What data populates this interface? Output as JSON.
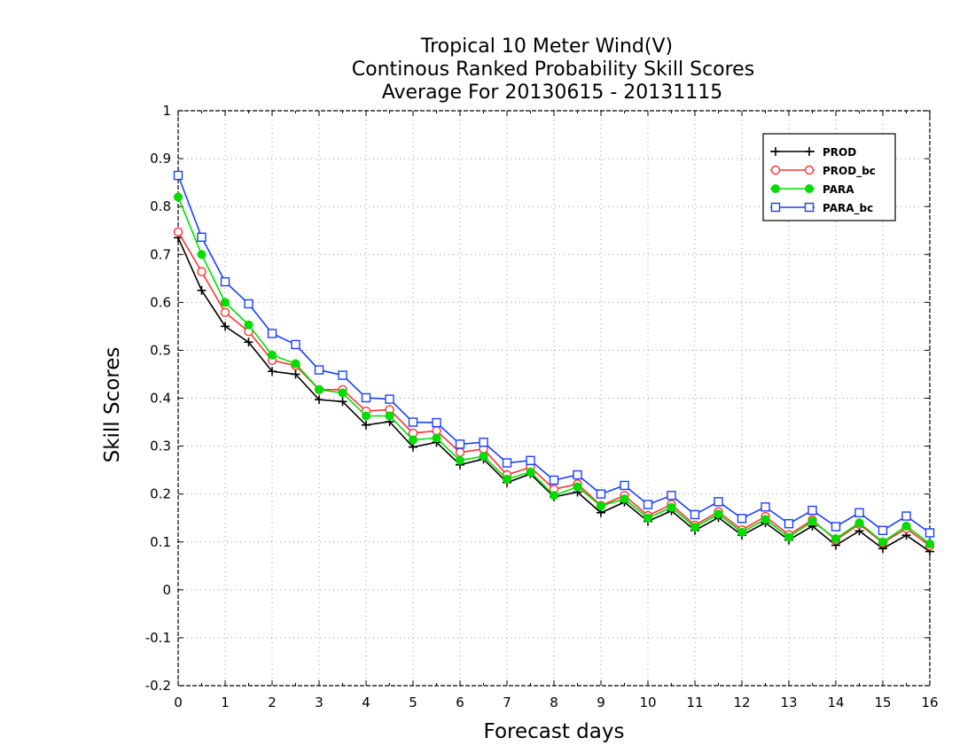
{
  "chart_data": {
    "type": "line",
    "title_lines": [
      "Tropical 10 Meter Wind(V)",
      "Continous Ranked Probability Skill Scores",
      "Average For 20130615 - 20131115"
    ],
    "xlabel": "Forecast days",
    "ylabel": "Skill Scores",
    "xlim": [
      0,
      16
    ],
    "ylim": [
      -0.2,
      1
    ],
    "x_ticks": [
      "0",
      "1",
      "2",
      "3",
      "4",
      "5",
      "6",
      "7",
      "8",
      "9",
      "10",
      "11",
      "12",
      "13",
      "14",
      "15",
      "16"
    ],
    "y_ticks": [
      "-0.2",
      "-0.1",
      "0",
      "0.1",
      "0.2",
      "0.3",
      "0.4",
      "0.5",
      "0.6",
      "0.7",
      "0.8",
      "0.9",
      "1"
    ],
    "grid": true,
    "legend_position": "top-right",
    "x": [
      0,
      0.5,
      1,
      1.5,
      2,
      2.5,
      3,
      3.5,
      4,
      4.5,
      5,
      5.5,
      6,
      6.5,
      7,
      7.5,
      8,
      8.5,
      9,
      9.5,
      10,
      10.5,
      11,
      11.5,
      12,
      12.5,
      13,
      13.5,
      14,
      14.5,
      15,
      15.5,
      16
    ],
    "series": [
      {
        "name": "PROD",
        "color": "#000000",
        "marker": "plus",
        "values": [
          0.735,
          0.625,
          0.55,
          0.517,
          0.456,
          0.45,
          0.397,
          0.393,
          0.344,
          0.351,
          0.298,
          0.308,
          0.261,
          0.273,
          0.224,
          0.242,
          0.194,
          0.204,
          0.161,
          0.183,
          0.143,
          0.165,
          0.124,
          0.151,
          0.114,
          0.14,
          0.104,
          0.133,
          0.093,
          0.123,
          0.086,
          0.114,
          0.08
        ]
      },
      {
        "name": "PROD_bc",
        "color": "#ff3333",
        "marker": "circle-open",
        "values": [
          0.747,
          0.664,
          0.579,
          0.539,
          0.479,
          0.468,
          0.418,
          0.418,
          0.373,
          0.376,
          0.327,
          0.332,
          0.287,
          0.294,
          0.24,
          0.256,
          0.21,
          0.221,
          0.176,
          0.197,
          0.155,
          0.178,
          0.135,
          0.163,
          0.125,
          0.153,
          0.115,
          0.146,
          0.104,
          0.137,
          0.098,
          0.128,
          0.092
        ]
      },
      {
        "name": "PARA",
        "color": "#00dd00",
        "marker": "circle-filled",
        "values": [
          0.82,
          0.7,
          0.6,
          0.553,
          0.49,
          0.472,
          0.418,
          0.411,
          0.363,
          0.363,
          0.313,
          0.317,
          0.27,
          0.279,
          0.231,
          0.246,
          0.197,
          0.215,
          0.175,
          0.19,
          0.15,
          0.172,
          0.131,
          0.158,
          0.12,
          0.147,
          0.11,
          0.143,
          0.107,
          0.14,
          0.1,
          0.133,
          0.096
        ]
      },
      {
        "name": "PARA_bc",
        "color": "#1a3fff",
        "marker": "square-open",
        "values": [
          0.865,
          0.736,
          0.643,
          0.597,
          0.535,
          0.512,
          0.459,
          0.448,
          0.401,
          0.398,
          0.35,
          0.349,
          0.304,
          0.308,
          0.265,
          0.27,
          0.229,
          0.24,
          0.2,
          0.218,
          0.178,
          0.197,
          0.157,
          0.184,
          0.149,
          0.173,
          0.138,
          0.166,
          0.132,
          0.161,
          0.124,
          0.154,
          0.119
        ]
      }
    ]
  }
}
